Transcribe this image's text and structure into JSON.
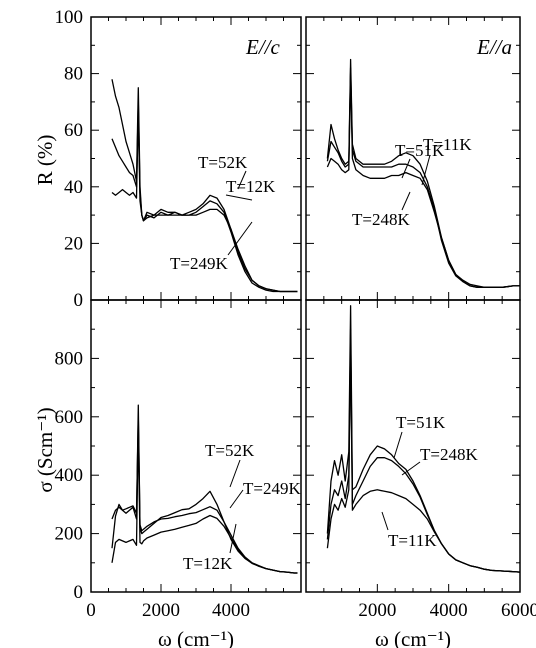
{
  "chart_data": [
    {
      "type": "line",
      "panel": "top-left",
      "annotation": "E//c",
      "ylabel": "R  (%)",
      "xlim": [
        0,
        6000
      ],
      "ylim": [
        0,
        100
      ],
      "yticks": [
        "0",
        "20",
        "40",
        "60",
        "80",
        "100"
      ],
      "series": [
        {
          "name": "T=52K",
          "x": [
            600,
            700,
            800,
            900,
            1000,
            1100,
            1200,
            1300,
            1350,
            1400,
            1450,
            1500,
            1600,
            1800,
            2000,
            2200,
            2400,
            2600,
            2800,
            3000,
            3200,
            3400,
            3600,
            3800,
            4000,
            4200,
            4400,
            4600,
            4800,
            5000,
            5200,
            5400,
            5600,
            5800,
            5900
          ],
          "y": [
            78,
            72,
            68,
            62,
            56,
            52,
            48,
            42,
            75,
            40,
            30,
            28,
            31,
            30,
            32,
            31,
            31,
            30,
            31,
            32,
            34,
            37,
            36,
            32,
            25,
            17,
            11,
            7,
            5,
            4,
            3.5,
            3,
            3,
            3,
            3
          ]
        },
        {
          "name": "T=12K",
          "x": [
            600,
            700,
            800,
            900,
            1000,
            1100,
            1200,
            1300,
            1350,
            1400,
            1450,
            1500,
            1600,
            1800,
            2000,
            2200,
            2400,
            2600,
            2800,
            3000,
            3200,
            3400,
            3600,
            3800,
            4000,
            4200,
            4400,
            4600,
            4800,
            5000,
            5200,
            5400,
            5600,
            5800,
            5900
          ],
          "y": [
            57,
            54,
            51,
            49,
            47,
            45,
            44,
            40,
            70,
            38,
            30,
            28,
            30,
            29,
            31,
            30,
            31,
            30,
            30,
            31,
            33,
            35,
            34,
            31,
            24,
            16,
            10,
            6,
            4.5,
            3.5,
            3,
            3,
            3,
            3,
            3
          ]
        },
        {
          "name": "T=249K",
          "x": [
            600,
            700,
            800,
            900,
            1000,
            1100,
            1200,
            1300,
            1350,
            1400,
            1450,
            1500,
            1600,
            1800,
            2000,
            2200,
            2400,
            2600,
            2800,
            3000,
            3200,
            3400,
            3600,
            3800,
            4000,
            4200,
            4400,
            4600,
            4800,
            5000,
            5200,
            5400,
            5600,
            5800,
            5900
          ],
          "y": [
            38,
            37,
            38,
            39,
            38,
            37,
            38,
            36,
            66,
            35,
            30,
            28,
            29,
            30,
            30,
            30,
            30,
            30,
            30,
            30,
            31,
            32,
            32,
            30,
            25,
            18,
            12,
            7,
            5,
            4,
            3.5,
            3,
            3,
            3,
            3
          ]
        }
      ],
      "annotations": [
        "T=52K",
        "T=12K",
        "T=249K"
      ]
    },
    {
      "type": "line",
      "panel": "top-right",
      "annotation": "E//a",
      "xlim": [
        0,
        6000
      ],
      "ylim": [
        0,
        100
      ],
      "series": [
        {
          "name": "T=51K",
          "x": [
            600,
            700,
            800,
            900,
            1000,
            1100,
            1200,
            1250,
            1300,
            1400,
            1600,
            1800,
            2000,
            2200,
            2400,
            2600,
            2800,
            3000,
            3200,
            3400,
            3600,
            3800,
            4000,
            4200,
            4400,
            4600,
            4800,
            5000,
            5200,
            5500,
            5800,
            6000
          ],
          "y": [
            50,
            62,
            57,
            53,
            50,
            48,
            49,
            85,
            55,
            50,
            48,
            48,
            48,
            48,
            49,
            51,
            52,
            51,
            48,
            42,
            33,
            22,
            14,
            9,
            7,
            5.5,
            5,
            4.5,
            4.5,
            4.5,
            5,
            5
          ]
        },
        {
          "name": "T=11K",
          "x": [
            600,
            700,
            800,
            900,
            1000,
            1100,
            1200,
            1250,
            1300,
            1400,
            1600,
            1800,
            2000,
            2200,
            2400,
            2600,
            2800,
            3000,
            3200,
            3400,
            3600,
            3800,
            4000,
            4200,
            4400,
            4600,
            4800,
            5000,
            5200,
            5500,
            5800,
            6000
          ],
          "y": [
            49,
            56,
            54,
            52,
            49,
            47,
            48,
            82,
            53,
            49,
            47,
            47,
            47,
            47,
            47,
            48,
            48,
            47,
            45,
            40,
            32,
            21,
            13,
            8.5,
            6.5,
            5,
            4.5,
            4.5,
            4.5,
            4.5,
            5,
            5
          ]
        },
        {
          "name": "T=248K",
          "x": [
            600,
            700,
            800,
            900,
            1000,
            1100,
            1200,
            1250,
            1300,
            1400,
            1600,
            1800,
            2000,
            2200,
            2400,
            2600,
            2800,
            3000,
            3200,
            3400,
            3600,
            3800,
            4000,
            4200,
            4400,
            4600,
            4800,
            5000,
            5200,
            5500,
            5800,
            6000
          ],
          "y": [
            47,
            50,
            49,
            48,
            46,
            45,
            46,
            80,
            50,
            46,
            44,
            43,
            43,
            43,
            44,
            44,
            45,
            44,
            43,
            39,
            31,
            22,
            14,
            9,
            6.5,
            5,
            4.5,
            4.5,
            4.5,
            4.5,
            5,
            5
          ]
        }
      ],
      "annotations": [
        "T=51K",
        "T=11K",
        "T=248K"
      ]
    },
    {
      "type": "line",
      "panel": "bottom-left",
      "ylabel": "σ (Scm⁻¹)",
      "xlabel": "ω  (cm⁻¹)",
      "xlim": [
        0,
        6000
      ],
      "ylim": [
        0,
        1000
      ],
      "yticks": [
        "0",
        "200",
        "400",
        "600",
        "800"
      ],
      "xticks": [
        "0",
        "2000",
        "4000"
      ],
      "series": [
        {
          "name": "T=52K",
          "x": [
            600,
            700,
            800,
            900,
            1000,
            1100,
            1200,
            1300,
            1350,
            1400,
            1450,
            1500,
            1600,
            1800,
            2000,
            2200,
            2400,
            2600,
            2800,
            3000,
            3200,
            3400,
            3600,
            3800,
            4000,
            4200,
            4400,
            4600,
            4800,
            5000,
            5200,
            5400,
            5600,
            5800,
            5900
          ],
          "y": [
            150,
            260,
            300,
            280,
            270,
            280,
            290,
            250,
            640,
            220,
            200,
            205,
            215,
            235,
            255,
            262,
            272,
            282,
            285,
            300,
            320,
            345,
            300,
            240,
            180,
            140,
            115,
            100,
            90,
            80,
            75,
            70,
            68,
            65,
            65
          ]
        },
        {
          "name": "T=249K",
          "x": [
            600,
            700,
            800,
            900,
            1000,
            1100,
            1200,
            1300,
            1350,
            1400,
            1450,
            1500,
            1600,
            1800,
            2000,
            2200,
            2400,
            2600,
            2800,
            3000,
            3200,
            3400,
            3600,
            3800,
            4000,
            4200,
            4400,
            4600,
            4800,
            5000,
            5200,
            5400,
            5600,
            5800,
            5900
          ],
          "y": [
            250,
            280,
            290,
            280,
            285,
            290,
            295,
            270,
            600,
            230,
            210,
            215,
            225,
            240,
            250,
            252,
            258,
            262,
            268,
            272,
            282,
            292,
            280,
            240,
            195,
            150,
            120,
            100,
            88,
            80,
            75,
            70,
            68,
            65,
            65
          ]
        },
        {
          "name": "T=12K",
          "x": [
            600,
            700,
            800,
            900,
            1000,
            1100,
            1200,
            1300,
            1350,
            1400,
            1450,
            1500,
            1600,
            1800,
            2000,
            2200,
            2400,
            2600,
            2800,
            3000,
            3200,
            3400,
            3600,
            3800,
            4000,
            4200,
            4400,
            4600,
            4800,
            5000,
            5200,
            5400,
            5600,
            5800,
            5900
          ],
          "y": [
            100,
            170,
            180,
            175,
            170,
            175,
            180,
            160,
            560,
            170,
            165,
            175,
            185,
            195,
            205,
            210,
            215,
            222,
            228,
            235,
            250,
            262,
            252,
            225,
            185,
            145,
            115,
            98,
            88,
            80,
            75,
            70,
            68,
            65,
            65
          ]
        }
      ],
      "annotations": [
        "T=52K",
        "T=249K",
        "T=12K"
      ]
    },
    {
      "type": "line",
      "panel": "bottom-right",
      "xlabel": "ω  (cm⁻¹)",
      "xlim": [
        0,
        6000
      ],
      "ylim": [
        0,
        1000
      ],
      "xticks": [
        "2000",
        "4000",
        "6000"
      ],
      "series": [
        {
          "name": "T=51K",
          "x": [
            600,
            700,
            800,
            900,
            1000,
            1100,
            1200,
            1250,
            1300,
            1400,
            1600,
            1800,
            2000,
            2200,
            2400,
            2600,
            2800,
            3000,
            3200,
            3400,
            3600,
            3800,
            4000,
            4200,
            4400,
            4600,
            4800,
            5000,
            5200,
            5500,
            5800,
            6000
          ],
          "y": [
            200,
            380,
            450,
            400,
            470,
            380,
            480,
            980,
            350,
            360,
            420,
            470,
            500,
            490,
            470,
            440,
            420,
            380,
            330,
            270,
            210,
            165,
            130,
            110,
            100,
            90,
            85,
            78,
            74,
            72,
            70,
            68
          ]
        },
        {
          "name": "T=248K",
          "x": [
            600,
            700,
            800,
            900,
            1000,
            1100,
            1200,
            1250,
            1300,
            1400,
            1600,
            1800,
            2000,
            2200,
            2400,
            2600,
            2800,
            3000,
            3200,
            3400,
            3600,
            3800,
            4000,
            4200,
            4400,
            4600,
            4800,
            5000,
            5200,
            5500,
            5800,
            6000
          ],
          "y": [
            180,
            300,
            350,
            330,
            380,
            320,
            400,
            900,
            300,
            330,
            380,
            430,
            460,
            460,
            450,
            430,
            405,
            370,
            325,
            265,
            210,
            165,
            130,
            110,
            100,
            90,
            85,
            78,
            74,
            72,
            70,
            68
          ]
        },
        {
          "name": "T=11K",
          "x": [
            600,
            700,
            800,
            900,
            1000,
            1100,
            1200,
            1250,
            1300,
            1400,
            1600,
            1800,
            2000,
            2200,
            2400,
            2600,
            2800,
            3000,
            3200,
            3400,
            3600,
            3800,
            4000,
            4200,
            4400,
            4600,
            4800,
            5000,
            5200,
            5500,
            5800,
            6000
          ],
          "y": [
            150,
            250,
            300,
            280,
            320,
            290,
            350,
            850,
            280,
            300,
            330,
            345,
            350,
            345,
            340,
            330,
            320,
            300,
            280,
            250,
            205,
            165,
            130,
            110,
            100,
            90,
            85,
            78,
            74,
            72,
            70,
            68
          ]
        }
      ],
      "annotations": [
        "T=51K",
        "T=248K",
        "T=11K"
      ]
    }
  ]
}
